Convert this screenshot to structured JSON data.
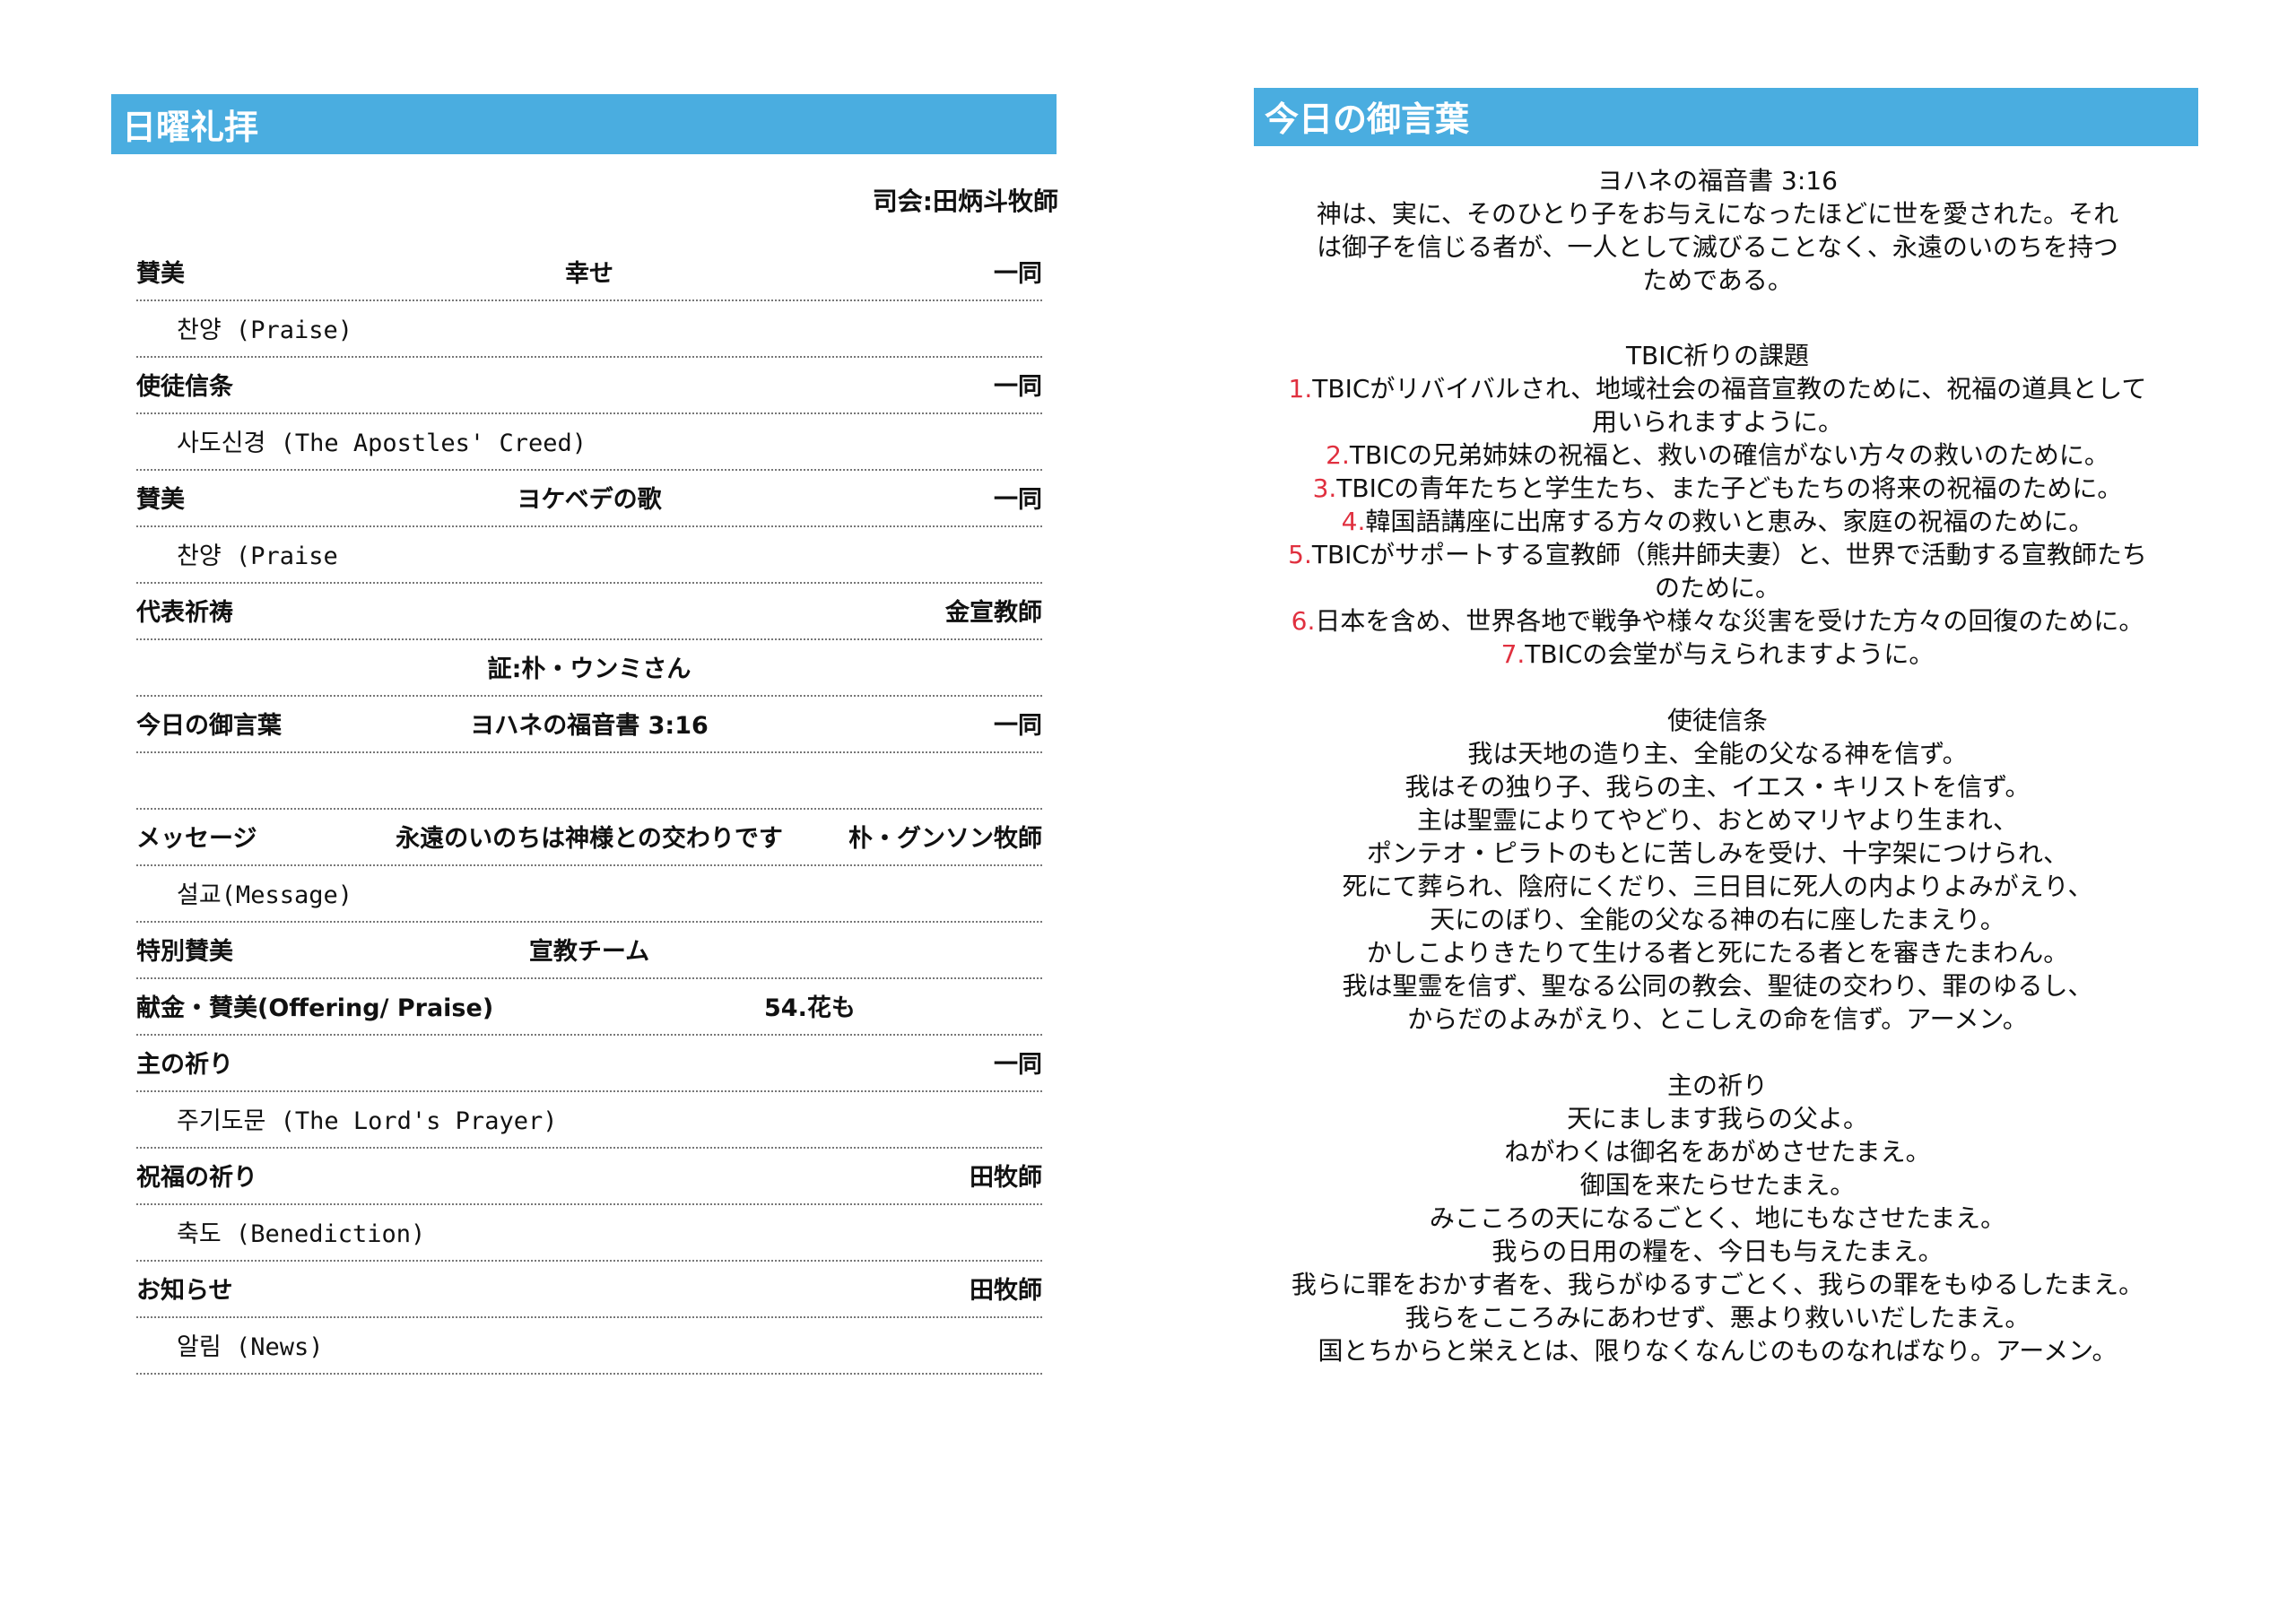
{
  "left": {
    "title": "日曜礼拝",
    "presider": "司会:田炳斗牧師",
    "rows": [
      {
        "label": "賛美",
        "center": "幸せ",
        "right": "一同"
      },
      {
        "sub": "찬양 (Praise)"
      },
      {
        "label": "使徒信条",
        "right": "一同"
      },
      {
        "sub": "사도신경 (The Apostles' Creed)"
      },
      {
        "label": "賛美",
        "center": "ヨケベデの歌",
        "right": "一同"
      },
      {
        "sub": "찬양 (Praise"
      },
      {
        "label": "代表祈祷",
        "right": "金宣教師"
      },
      {
        "center": "証:朴・ウンミさん"
      },
      {
        "label": "今日の御言葉",
        "center": "ヨハネの福音書 3:16",
        "right": "一同"
      },
      {},
      {
        "label": "メッセージ",
        "center": "永遠のいのちは神様との交わりです",
        "right": "朴・グンソン牧師"
      },
      {
        "sub": "설교(Message)"
      },
      {
        "label": "特別賛美",
        "center": "宣教チーム"
      },
      {
        "label": "献金・賛美(Offering/ Praise)",
        "center2": "54.花も"
      },
      {
        "label": "主の祈り",
        "right": "一同"
      },
      {
        "sub": "주기도문 (The Lord's Prayer)"
      },
      {
        "label": "祝福の祈り",
        "right": "田牧師"
      },
      {
        "sub": "축도 (Benediction)"
      },
      {
        "label": "お知らせ",
        "right": "田牧師"
      },
      {
        "sub": "알림 (News)"
      }
    ]
  },
  "right": {
    "title": "今日の御言葉",
    "verse_ref": "ヨハネの福音書 3:16",
    "verse_lines": [
      "神は、実に、そのひとり子をお与えになったほどに世を愛された。それ",
      "は御子を信じる者が、一人として滅びることなく、永遠のいのちを持つ",
      "ためである。"
    ],
    "prayer_title": "TBIC祈りの課題",
    "prayer_items": [
      {
        "num": "1.",
        "lines": [
          "TBICがリバイバルされ、地域社会の福音宣教のために、祝福の道具として",
          "用いられますように。"
        ]
      },
      {
        "num": "2.",
        "lines": [
          "TBICの兄弟姉妹の祝福と、救いの確信がない方々の救いのために。"
        ]
      },
      {
        "num": "3.",
        "lines": [
          "TBICの青年たちと学生たち、また子どもたちの将来の祝福のために。"
        ]
      },
      {
        "num": "4.",
        "lines": [
          "韓国語講座に出席する方々の救いと恵み、家庭の祝福のために。"
        ]
      },
      {
        "num": "5.",
        "lines": [
          "TBICがサポートする宣教師（熊井師夫妻）と、世界で活動する宣教師たち",
          "のために。"
        ]
      },
      {
        "num": "6.",
        "lines": [
          "日本を含め、世界各地で戦争や様々な災害を受けた方々の回復のために。"
        ]
      },
      {
        "num": "7.",
        "lines": [
          "TBICの会堂が与えられますように。"
        ]
      }
    ],
    "creed_title": "使徒信条",
    "creed_lines": [
      "我は天地の造り主、全能の父なる神を信ず。",
      "我はその独り子、我らの主、イエス・キリストを信ず。",
      "主は聖霊によりてやどり、おとめマリヤより生まれ、",
      "ポンテオ・ピラトのもとに苦しみを受け、十字架につけられ、",
      "死にて葬られ、陰府にくだり、三日目に死人の内よりよみがえり、",
      "天にのぼり、全能の父なる神の右に座したまえり。",
      "かしこよりきたりて生ける者と死にたる者とを審きたまわん。",
      "我は聖霊を信ず、聖なる公同の教会、聖徒の交わり、罪のゆるし、",
      "からだのよみがえり、とこしえの命を信ず。アーメン。"
    ],
    "lords_title": "主の祈り",
    "lords_lines": [
      "天にまします我らの父よ。",
      "ねがわくは御名をあがめさせたまえ。",
      "御国を来たらせたまえ。",
      "みこころの天になるごとく、地にもなさせたまえ。",
      "我らの日用の糧を、今日も与えたまえ。",
      "我らに罪をおかす者を、我らがゆるすごとく、我らの罪をもゆるしたまえ。",
      "我らをこころみにあわせず、悪より救いいだしたまえ。",
      "国とちからと栄えとは、限りなくなんじのものなればなり。アーメン。"
    ]
  },
  "colors": {
    "header": "#4aade0",
    "number": "#e0303f"
  }
}
